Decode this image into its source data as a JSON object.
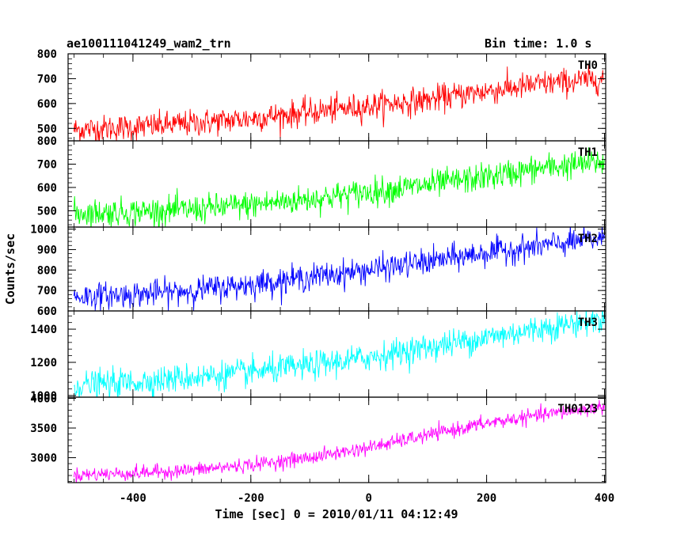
{
  "header": {
    "left_title": "ae100111041249_wam2_trn",
    "right_title": "Bin time: 1.0 s"
  },
  "ylabel": "Counts/sec",
  "xlabel": "Time [sec] 0 = 2010/01/11 04:12:49",
  "chart_data": [
    {
      "type": "line",
      "series": [
        {
          "name": "TH0",
          "color": "#ff0000"
        }
      ],
      "x_range": [
        -510,
        402
      ],
      "y_range": [
        450,
        800
      ],
      "y_ticks": [
        500,
        600,
        700,
        800
      ],
      "trend": {
        "x": [
          -500,
          -400,
          -300,
          -200,
          -100,
          0,
          100,
          200,
          300,
          400
        ],
        "y": [
          495,
          505,
          520,
          540,
          565,
          590,
          615,
          650,
          680,
          700
        ]
      },
      "noise_sd": 27
    },
    {
      "type": "line",
      "series": [
        {
          "name": "TH1",
          "color": "#00ff00"
        }
      ],
      "x_range": [
        -510,
        402
      ],
      "y_range": [
        430,
        800
      ],
      "y_ticks": [
        500,
        600,
        700,
        800
      ],
      "trend": {
        "x": [
          -500,
          -400,
          -300,
          -200,
          -100,
          0,
          100,
          200,
          300,
          400
        ],
        "y": [
          490,
          495,
          505,
          525,
          550,
          580,
          610,
          645,
          685,
          710
        ]
      },
      "noise_sd": 30
    },
    {
      "type": "line",
      "series": [
        {
          "name": "TH2",
          "color": "#0000ff"
        }
      ],
      "x_range": [
        -510,
        402
      ],
      "y_range": [
        600,
        1010
      ],
      "y_ticks": [
        600,
        700,
        800,
        900,
        1000
      ],
      "trend": {
        "x": [
          -500,
          -400,
          -300,
          -200,
          -100,
          0,
          100,
          200,
          300,
          400
        ],
        "y": [
          670,
          680,
          700,
          730,
          765,
          800,
          840,
          885,
          920,
          955
        ]
      },
      "noise_sd": 32
    },
    {
      "type": "line",
      "series": [
        {
          "name": "TH3",
          "color": "#00ffff"
        }
      ],
      "x_range": [
        -510,
        402
      ],
      "y_range": [
        990,
        1510
      ],
      "y_ticks": [
        1000,
        1200,
        1400
      ],
      "trend": {
        "x": [
          -500,
          -400,
          -300,
          -200,
          -100,
          0,
          100,
          200,
          300,
          400
        ],
        "y": [
          1060,
          1080,
          1110,
          1140,
          1180,
          1230,
          1290,
          1350,
          1410,
          1460
        ]
      },
      "noise_sd": 42
    },
    {
      "type": "line",
      "series": [
        {
          "name": "TH0123",
          "color": "#ff00ff"
        }
      ],
      "x_range": [
        -510,
        402
      ],
      "y_range": [
        2580,
        4020
      ],
      "y_ticks": [
        3000,
        3500,
        4000
      ],
      "trend": {
        "x": [
          -500,
          -400,
          -300,
          -200,
          -100,
          0,
          100,
          200,
          300,
          400
        ],
        "y": [
          2710,
          2740,
          2790,
          2880,
          3000,
          3170,
          3380,
          3580,
          3730,
          3860
        ]
      },
      "noise_sd": 60
    }
  ],
  "x_ticks": [
    -400,
    -200,
    0,
    200,
    400
  ]
}
